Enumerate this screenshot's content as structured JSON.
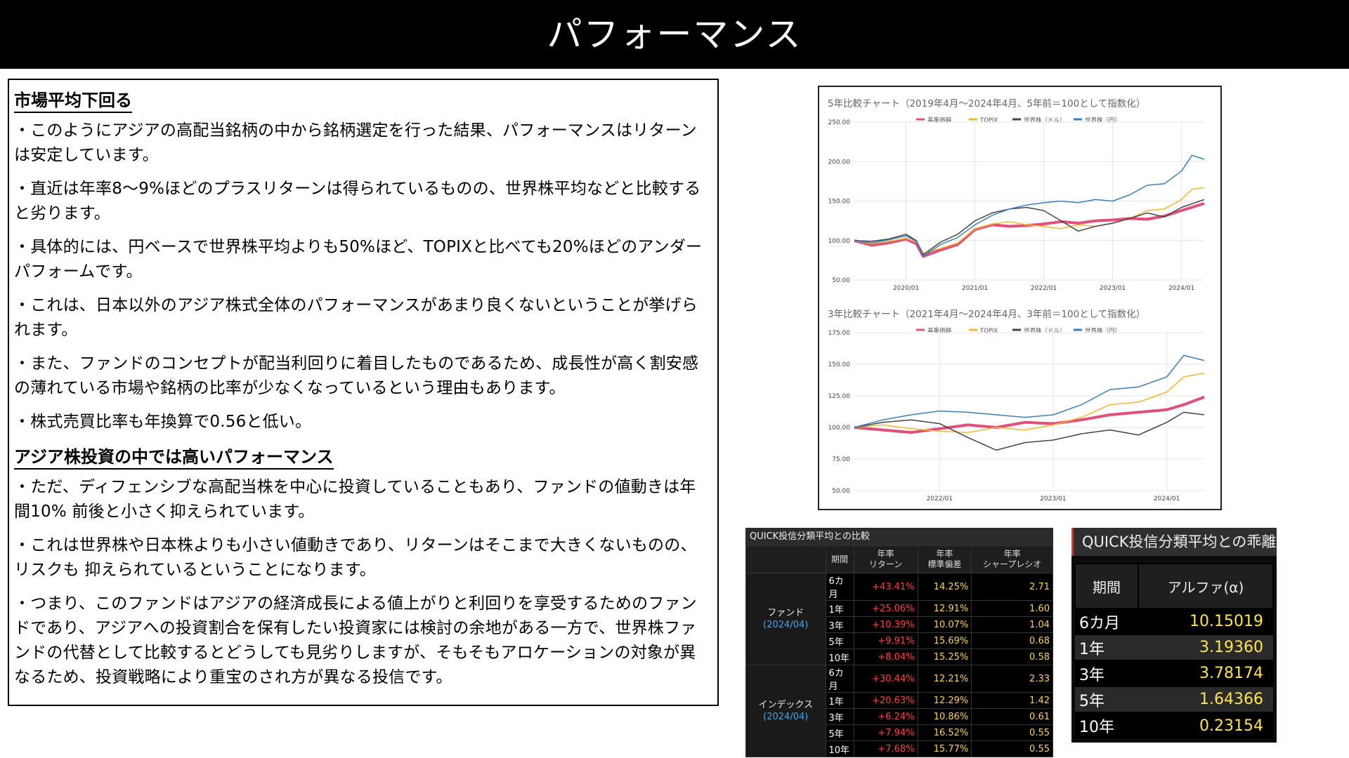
{
  "title": "パフォーマンス",
  "text_panel": {
    "heading1": "市場平均下回る",
    "paras1": [
      "・このようにアジアの高配当銘柄の中から銘柄選定を行った結果、パフォーマンスはリターンは安定しています。",
      "・直近は年率8〜9%ほどのプラスリターンは得られているものの、世界株平均などと比較すると劣ります。",
      "・具体的には、円ベースで世界株平均よりも50%ほど、TOPIXと比べても20%ほどのアンダーパフォームです。",
      "・これは、日本以外のアジア株式全体のパフォーマンスがあまり良くないということが挙げられます。",
      "・また、ファンドのコンセプトが配当利回りに着目したものであるため、成長性が高く割安感の薄れている市場や銘柄の比率が少なくなっているという理由もあります。",
      "・株式売買比率も年換算で0.56と低い。"
    ],
    "heading2": "アジア株投資の中では高いパフォーマンス",
    "paras2": [
      "・ただ、ディフェンシブな高配当株を中心に投資していることもあり、ファンドの値動きは年間10% 前後と小さく抑えられています。",
      "・これは世界株や日本株よりも小さい値動きであり、リターンはそこまで大きくないものの、リスクも 抑えられているということになります。",
      "・つまり、このファンドはアジアの経済成長による値上がりと利回りを享受するためのファンドであり、アジアへの投資割合を保有したい投資家には検討の余地がある一方で、世界株ファンドの代替として比較するとどうしても見劣りしますが、そもそもアロケーションの対象が異なるため、投資戦略により重宝のされ方が異なる投信です。"
    ]
  },
  "chart_data": [
    {
      "type": "line",
      "title": "5年比較チャート（2019年4月〜2024年4月、5年前＝100として指数化）",
      "ylim": [
        50,
        250
      ],
      "yticks": [
        "50.00",
        "100.00",
        "150.00",
        "200.00",
        "250.00"
      ],
      "xticks": [
        "2020/01",
        "2021/01",
        "2022/01",
        "2023/01",
        "2024/01"
      ],
      "xrange": [
        2019.25,
        2024.33
      ],
      "xtick_pos": [
        2020.0,
        2021.0,
        2022.0,
        2023.0,
        2024.0
      ],
      "legend_position": "top",
      "grid": true,
      "series": [
        {
          "name": "基準価額",
          "color": "#e0507a",
          "width": 4,
          "x": [
            2019.25,
            2019.5,
            2019.75,
            2020.0,
            2020.15,
            2020.25,
            2020.5,
            2020.75,
            2021.0,
            2021.25,
            2021.5,
            2021.75,
            2022.0,
            2022.25,
            2022.5,
            2022.75,
            2023.0,
            2023.25,
            2023.5,
            2023.75,
            2024.0,
            2024.33
          ],
          "y": [
            100,
            94,
            97,
            102,
            96,
            80,
            88,
            95,
            114,
            120,
            118,
            119,
            121,
            124,
            122,
            125,
            126,
            128,
            127,
            131,
            138,
            147
          ]
        },
        {
          "name": "TOPIX",
          "color": "#f2b82e",
          "width": 1.5,
          "x": [
            2019.25,
            2019.5,
            2019.75,
            2020.0,
            2020.15,
            2020.25,
            2020.5,
            2020.75,
            2021.0,
            2021.25,
            2021.5,
            2021.75,
            2022.0,
            2022.25,
            2022.5,
            2022.75,
            2023.0,
            2023.25,
            2023.5,
            2023.75,
            2024.0,
            2024.15,
            2024.33
          ],
          "y": [
            100,
            96,
            99,
            103,
            98,
            84,
            90,
            97,
            115,
            121,
            124,
            120,
            118,
            115,
            120,
            118,
            122,
            128,
            138,
            140,
            152,
            165,
            167
          ]
        },
        {
          "name": "世界株（ドル）",
          "color": "#444444",
          "width": 1.5,
          "x": [
            2019.25,
            2019.5,
            2019.75,
            2020.0,
            2020.15,
            2020.25,
            2020.5,
            2020.75,
            2021.0,
            2021.25,
            2021.5,
            2021.75,
            2022.0,
            2022.25,
            2022.5,
            2022.75,
            2023.0,
            2023.25,
            2023.5,
            2023.75,
            2024.0,
            2024.33
          ],
          "y": [
            100,
            99,
            102,
            108,
            100,
            82,
            98,
            108,
            125,
            135,
            140,
            142,
            138,
            125,
            112,
            118,
            122,
            128,
            135,
            130,
            142,
            152
          ]
        },
        {
          "name": "世界株（円）",
          "color": "#3a7fc0",
          "width": 1.5,
          "x": [
            2019.25,
            2019.5,
            2019.75,
            2020.0,
            2020.15,
            2020.25,
            2020.5,
            2020.75,
            2021.0,
            2021.25,
            2021.5,
            2021.75,
            2022.0,
            2022.25,
            2022.5,
            2022.75,
            2023.0,
            2023.25,
            2023.5,
            2023.75,
            2024.0,
            2024.15,
            2024.33
          ],
          "y": [
            100,
            97,
            101,
            106,
            99,
            80,
            95,
            104,
            120,
            132,
            140,
            145,
            148,
            150,
            148,
            152,
            150,
            158,
            170,
            172,
            188,
            208,
            203
          ]
        }
      ]
    },
    {
      "type": "line",
      "title": "3年比較チャート（2021年4月〜2024年4月、3年前＝100として指数化）",
      "ylim": [
        50,
        175
      ],
      "yticks": [
        "50.00",
        "75.00",
        "100.00",
        "125.00",
        "150.00",
        "175.00"
      ],
      "xticks": [
        "2022/01",
        "2023/01",
        "2024/01"
      ],
      "xrange": [
        2021.25,
        2024.33
      ],
      "xtick_pos": [
        2022.0,
        2023.0,
        2024.0
      ],
      "legend_position": "top",
      "grid": true,
      "series": [
        {
          "name": "基準価額",
          "color": "#e0507a",
          "width": 4,
          "x": [
            2021.25,
            2021.5,
            2021.75,
            2022.0,
            2022.25,
            2022.5,
            2022.75,
            2023.0,
            2023.25,
            2023.5,
            2023.75,
            2024.0,
            2024.15,
            2024.33
          ],
          "y": [
            100,
            98,
            96,
            99,
            102,
            100,
            104,
            103,
            106,
            110,
            112,
            114,
            118,
            124
          ]
        },
        {
          "name": "TOPIX",
          "color": "#f2b82e",
          "width": 1.5,
          "x": [
            2021.25,
            2021.5,
            2021.75,
            2022.0,
            2022.25,
            2022.5,
            2022.75,
            2023.0,
            2023.25,
            2023.5,
            2023.75,
            2024.0,
            2024.15,
            2024.33
          ],
          "y": [
            100,
            102,
            99,
            97,
            96,
            100,
            98,
            102,
            108,
            118,
            120,
            128,
            140,
            143
          ]
        },
        {
          "name": "世界株（ドル）",
          "color": "#444444",
          "width": 1.5,
          "x": [
            2021.25,
            2021.5,
            2021.75,
            2022.0,
            2022.25,
            2022.5,
            2022.75,
            2023.0,
            2023.25,
            2023.5,
            2023.75,
            2024.0,
            2024.15,
            2024.33
          ],
          "y": [
            100,
            104,
            106,
            103,
            92,
            82,
            88,
            90,
            95,
            98,
            94,
            104,
            112,
            110
          ]
        },
        {
          "name": "世界株（円）",
          "color": "#3a7fc0",
          "width": 1.5,
          "x": [
            2021.25,
            2021.5,
            2021.75,
            2022.0,
            2022.25,
            2022.5,
            2022.75,
            2023.0,
            2023.25,
            2023.5,
            2023.75,
            2024.0,
            2024.15,
            2024.33
          ],
          "y": [
            100,
            106,
            110,
            113,
            112,
            110,
            108,
            110,
            118,
            130,
            132,
            140,
            157,
            153
          ]
        }
      ]
    }
  ],
  "comparison_table": {
    "title": "QUICK投信分類平均との比較",
    "headers": [
      "期間",
      "年率\nリターン",
      "年率\n標準偏差",
      "年率\nシャープレシオ"
    ],
    "groups": [
      {
        "label": "ファンド",
        "sub": "(2024/04)",
        "rows": [
          [
            "6カ月",
            "+43.41%",
            "14.25%",
            "2.71"
          ],
          [
            "1年",
            "+25.06%",
            "12.91%",
            "1.60"
          ],
          [
            "3年",
            "+10.39%",
            "10.07%",
            "1.04"
          ],
          [
            "5年",
            "+9.91%",
            "15.69%",
            "0.68"
          ],
          [
            "10年",
            "+8.04%",
            "15.25%",
            "0.58"
          ]
        ]
      },
      {
        "label": "インデックス",
        "sub": "(2024/04)",
        "rows": [
          [
            "6カ月",
            "+30.44%",
            "12.21%",
            "2.33"
          ],
          [
            "1年",
            "+20.63%",
            "12.29%",
            "1.42"
          ],
          [
            "3年",
            "+6.24%",
            "10.86%",
            "0.61"
          ],
          [
            "5年",
            "+7.94%",
            "16.52%",
            "0.55"
          ],
          [
            "10年",
            "+7.68%",
            "15.77%",
            "0.55"
          ]
        ]
      }
    ]
  },
  "alpha_table": {
    "title": "QUICK投信分類平均との乖離",
    "headers": [
      "期間",
      "アルファ(α)"
    ],
    "rows": [
      [
        "6カ月",
        "10.15019"
      ],
      [
        "1年",
        "3.19360"
      ],
      [
        "3年",
        "3.78174"
      ],
      [
        "5年",
        "1.64366"
      ],
      [
        "10年",
        "0.23154"
      ]
    ]
  }
}
